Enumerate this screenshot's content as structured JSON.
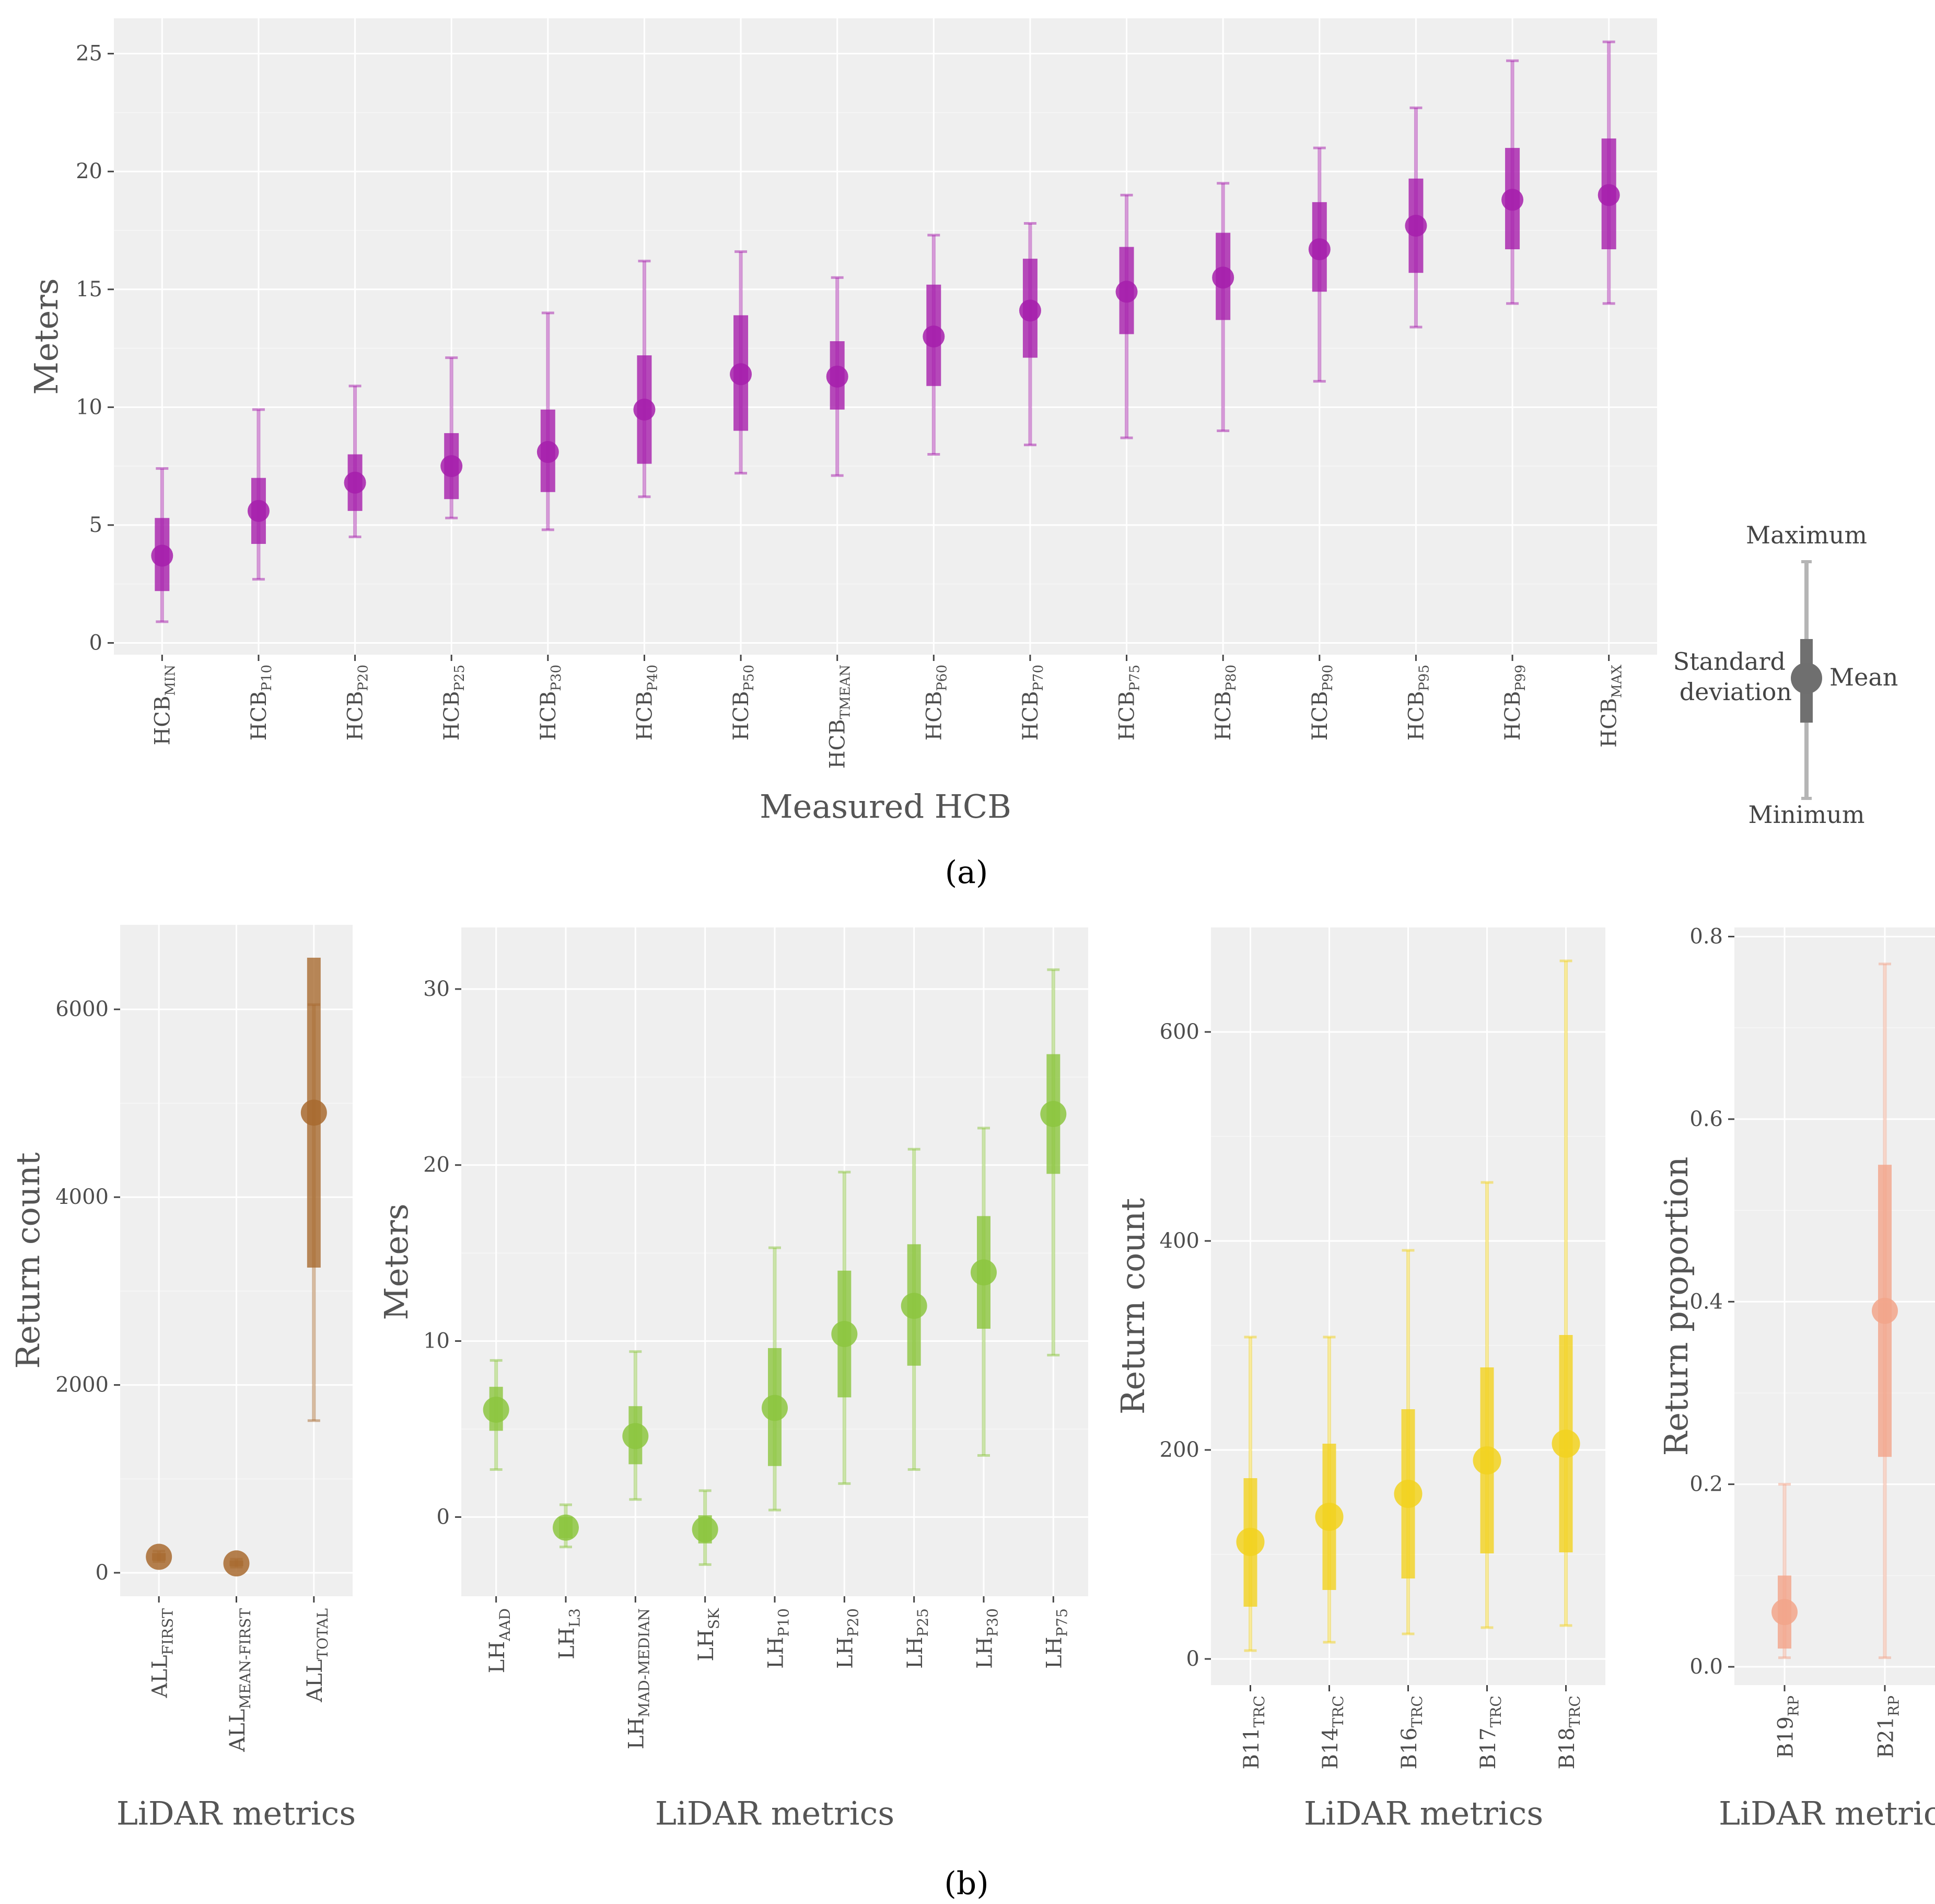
{
  "captions": {
    "a": "(a)",
    "b": "(b)"
  },
  "legend": {
    "maximum": "Maximum",
    "minimum": "Minimum",
    "mean": "Mean",
    "sd_line1": "Standard",
    "sd_line2": "deviation"
  },
  "chart_data": [
    {
      "id": "a",
      "type": "errorbar",
      "xlabel": "Measured HCB",
      "ylabel": "Meters",
      "ylim": [
        -0.5,
        26.5
      ],
      "yticks": [
        0,
        5,
        10,
        15,
        20,
        25
      ],
      "color": "#a61eab",
      "grid": true,
      "points": [
        {
          "base": "HCB",
          "sub": "MIN",
          "mean": 3.7,
          "sd_low": 2.2,
          "sd_high": 5.3,
          "min": 0.9,
          "max": 7.4
        },
        {
          "base": "HCB",
          "sub": "P10",
          "mean": 5.6,
          "sd_low": 4.2,
          "sd_high": 7.0,
          "min": 2.7,
          "max": 9.9
        },
        {
          "base": "HCB",
          "sub": "P20",
          "mean": 6.8,
          "sd_low": 5.6,
          "sd_high": 8.0,
          "min": 4.5,
          "max": 10.9
        },
        {
          "base": "HCB",
          "sub": "P25",
          "mean": 7.5,
          "sd_low": 6.1,
          "sd_high": 8.9,
          "min": 5.3,
          "max": 12.1
        },
        {
          "base": "HCB",
          "sub": "P30",
          "mean": 8.1,
          "sd_low": 6.4,
          "sd_high": 9.9,
          "min": 4.8,
          "max": 14.0
        },
        {
          "base": "HCB",
          "sub": "P40",
          "mean": 9.9,
          "sd_low": 7.6,
          "sd_high": 12.2,
          "min": 6.2,
          "max": 16.2
        },
        {
          "base": "HCB",
          "sub": "P50",
          "mean": 11.4,
          "sd_low": 9.0,
          "sd_high": 13.9,
          "min": 7.2,
          "max": 16.6
        },
        {
          "base": "HCB",
          "sub": "TMEAN",
          "mean": 11.3,
          "sd_low": 9.9,
          "sd_high": 12.8,
          "min": 7.1,
          "max": 15.5
        },
        {
          "base": "HCB",
          "sub": "P60",
          "mean": 13.0,
          "sd_low": 10.9,
          "sd_high": 15.2,
          "min": 8.0,
          "max": 17.3
        },
        {
          "base": "HCB",
          "sub": "P70",
          "mean": 14.1,
          "sd_low": 12.1,
          "sd_high": 16.3,
          "min": 8.4,
          "max": 17.8
        },
        {
          "base": "HCB",
          "sub": "P75",
          "mean": 14.9,
          "sd_low": 13.1,
          "sd_high": 16.8,
          "min": 8.7,
          "max": 19.0
        },
        {
          "base": "HCB",
          "sub": "P80",
          "mean": 15.5,
          "sd_low": 13.7,
          "sd_high": 17.4,
          "min": 9.0,
          "max": 19.5
        },
        {
          "base": "HCB",
          "sub": "P90",
          "mean": 16.7,
          "sd_low": 14.9,
          "sd_high": 18.7,
          "min": 11.1,
          "max": 21.0
        },
        {
          "base": "HCB",
          "sub": "P95",
          "mean": 17.7,
          "sd_low": 15.7,
          "sd_high": 19.7,
          "min": 13.4,
          "max": 22.7
        },
        {
          "base": "HCB",
          "sub": "P99",
          "mean": 18.8,
          "sd_low": 16.7,
          "sd_high": 21.0,
          "min": 14.4,
          "max": 24.7
        },
        {
          "base": "HCB",
          "sub": "MAX",
          "mean": 19.0,
          "sd_low": 16.7,
          "sd_high": 21.4,
          "min": 14.4,
          "max": 25.5
        }
      ]
    },
    {
      "id": "b1",
      "type": "errorbar",
      "xlabel": "LiDAR metrics",
      "ylabel": "Return count",
      "ylim": [
        -250,
        6900
      ],
      "yticks": [
        0,
        2000,
        4000,
        6000
      ],
      "color": "#a86a2f",
      "grid": true,
      "points": [
        {
          "base": "ALL",
          "sub": "FIRST",
          "mean": 170,
          "sd_low": 130,
          "sd_high": 210,
          "min": 120,
          "max": 230
        },
        {
          "base": "ALL",
          "sub": "MEAN-FIRST",
          "mean": 100,
          "sd_low": 70,
          "sd_high": 130,
          "min": 60,
          "max": 145
        },
        {
          "base": "ALL",
          "sub": "TOTAL",
          "mean": 4900,
          "sd_low": 3250,
          "sd_high": 6550,
          "min": 1620,
          "max": 6050
        }
      ]
    },
    {
      "id": "b2",
      "type": "errorbar",
      "xlabel": "LiDAR metrics",
      "ylabel": "Meters",
      "ylim": [
        -4.5,
        33.5
      ],
      "yticks": [
        0,
        10,
        20,
        30
      ],
      "color": "#8cc63f",
      "grid": true,
      "points": [
        {
          "base": "LH",
          "sub": "AAD",
          "mean": 6.1,
          "sd_low": 4.9,
          "sd_high": 7.4,
          "min": 2.7,
          "max": 8.9
        },
        {
          "base": "LH",
          "sub": "L3",
          "mean": -0.6,
          "sd_low": -1.2,
          "sd_high": 0.0,
          "min": -1.7,
          "max": 0.7
        },
        {
          "base": "LH",
          "sub": "MAD-MEDIAN",
          "mean": 4.6,
          "sd_low": 3.0,
          "sd_high": 6.3,
          "min": 1.0,
          "max": 9.4
        },
        {
          "base": "LH",
          "sub": "SK",
          "mean": -0.7,
          "sd_low": -1.5,
          "sd_high": 0.1,
          "min": -2.7,
          "max": 1.5
        },
        {
          "base": "LH",
          "sub": "P10",
          "mean": 6.2,
          "sd_low": 2.9,
          "sd_high": 9.6,
          "min": 0.4,
          "max": 15.3
        },
        {
          "base": "LH",
          "sub": "P20",
          "mean": 10.4,
          "sd_low": 6.8,
          "sd_high": 14.0,
          "min": 1.9,
          "max": 19.6
        },
        {
          "base": "LH",
          "sub": "P25",
          "mean": 12.0,
          "sd_low": 8.6,
          "sd_high": 15.5,
          "min": 2.7,
          "max": 20.9
        },
        {
          "base": "LH",
          "sub": "P30",
          "mean": 13.9,
          "sd_low": 10.7,
          "sd_high": 17.1,
          "min": 3.5,
          "max": 22.1
        },
        {
          "base": "LH",
          "sub": "P75",
          "mean": 22.9,
          "sd_low": 19.5,
          "sd_high": 26.3,
          "min": 9.2,
          "max": 31.1
        }
      ]
    },
    {
      "id": "b3",
      "type": "errorbar",
      "xlabel": "LiDAR metrics",
      "ylabel": "Return count",
      "ylim": [
        -25,
        700
      ],
      "yticks": [
        0,
        200,
        400,
        600
      ],
      "color": "#f2d21f",
      "grid": true,
      "points": [
        {
          "base": "B11",
          "sub": "TRC",
          "mean": 112,
          "sd_low": 50,
          "sd_high": 173,
          "min": 8,
          "max": 308
        },
        {
          "base": "B14",
          "sub": "TRC",
          "mean": 136,
          "sd_low": 66,
          "sd_high": 206,
          "min": 16,
          "max": 308
        },
        {
          "base": "B16",
          "sub": "TRC",
          "mean": 158,
          "sd_low": 77,
          "sd_high": 239,
          "min": 24,
          "max": 391
        },
        {
          "base": "B17",
          "sub": "TRC",
          "mean": 190,
          "sd_low": 101,
          "sd_high": 279,
          "min": 30,
          "max": 456
        },
        {
          "base": "B18",
          "sub": "TRC",
          "mean": 206,
          "sd_low": 102,
          "sd_high": 310,
          "min": 32,
          "max": 668
        }
      ]
    },
    {
      "id": "b4",
      "type": "errorbar",
      "xlabel": "LiDAR metrics",
      "ylabel": "Return proportion",
      "ylim": [
        -0.02,
        0.81
      ],
      "yticks": [
        0.0,
        0.2,
        0.4,
        0.6,
        0.8
      ],
      "ytick_labels": [
        "0.0",
        "0.2",
        "0.4",
        "0.6",
        "0.8"
      ],
      "color": "#f2a48a",
      "grid": true,
      "points": [
        {
          "base": "B19",
          "sub": "RP",
          "mean": 0.06,
          "sd_low": 0.02,
          "sd_high": 0.1,
          "min": 0.01,
          "max": 0.2
        },
        {
          "base": "B21",
          "sub": "RP",
          "mean": 0.39,
          "sd_low": 0.23,
          "sd_high": 0.55,
          "min": 0.01,
          "max": 0.77
        }
      ]
    }
  ]
}
